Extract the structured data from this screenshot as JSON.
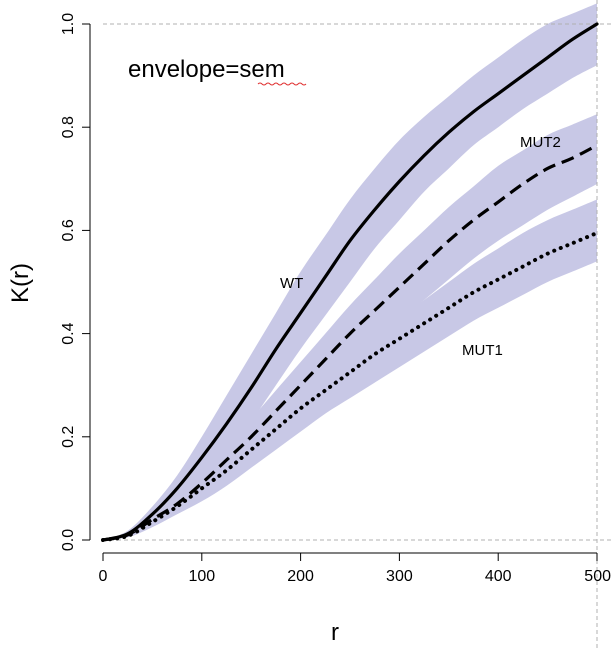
{
  "chart_data": {
    "type": "line",
    "title": "",
    "annotation": "envelope=sem",
    "xlabel": "r",
    "ylabel": "K(r)",
    "xlim": [
      0,
      500
    ],
    "ylim": [
      0,
      1.0
    ],
    "x_ticks": [
      0,
      100,
      200,
      300,
      400,
      500
    ],
    "y_ticks": [
      0.0,
      0.2,
      0.4,
      0.6,
      0.8,
      1.0
    ],
    "x_tick_labels": [
      "0",
      "100",
      "200",
      "300",
      "400",
      "500"
    ],
    "y_tick_labels": [
      "0.0",
      "0.2",
      "0.4",
      "0.6",
      "0.8",
      "1.0"
    ],
    "grid": false,
    "legend": "none",
    "envelope_color": "#c8c8e6",
    "x": [
      0,
      25,
      50,
      75,
      100,
      125,
      150,
      175,
      200,
      225,
      250,
      275,
      300,
      325,
      350,
      375,
      400,
      425,
      450,
      475,
      500
    ],
    "series": [
      {
        "name": "WT",
        "line_style": "solid",
        "values": [
          0.0,
          0.012,
          0.05,
          0.1,
          0.16,
          0.225,
          0.295,
          0.37,
          0.44,
          0.51,
          0.58,
          0.64,
          0.695,
          0.745,
          0.79,
          0.83,
          0.865,
          0.9,
          0.935,
          0.97,
          1.0
        ],
        "band_lower": [
          0.0,
          0.008,
          0.035,
          0.075,
          0.12,
          0.17,
          0.23,
          0.3,
          0.37,
          0.435,
          0.5,
          0.565,
          0.62,
          0.675,
          0.72,
          0.765,
          0.8,
          0.835,
          0.865,
          0.895,
          0.92
        ],
        "band_upper": [
          0.0,
          0.018,
          0.065,
          0.125,
          0.2,
          0.28,
          0.36,
          0.44,
          0.52,
          0.59,
          0.66,
          0.72,
          0.775,
          0.82,
          0.86,
          0.9,
          0.935,
          0.97,
          1.0,
          1.02,
          1.04
        ]
      },
      {
        "name": "MUT2",
        "line_style": "dashed",
        "values": [
          0.0,
          0.01,
          0.04,
          0.07,
          0.11,
          0.155,
          0.2,
          0.25,
          0.3,
          0.35,
          0.4,
          0.445,
          0.49,
          0.535,
          0.58,
          0.62,
          0.655,
          0.69,
          0.72,
          0.74,
          0.765
        ],
        "band_lower": [
          0.0,
          0.007,
          0.028,
          0.055,
          0.085,
          0.12,
          0.16,
          0.205,
          0.255,
          0.305,
          0.345,
          0.385,
          0.425,
          0.465,
          0.505,
          0.545,
          0.58,
          0.61,
          0.64,
          0.665,
          0.69
        ],
        "band_upper": [
          0.0,
          0.014,
          0.055,
          0.09,
          0.135,
          0.185,
          0.235,
          0.29,
          0.345,
          0.4,
          0.455,
          0.505,
          0.555,
          0.6,
          0.645,
          0.685,
          0.725,
          0.755,
          0.785,
          0.805,
          0.825
        ]
      },
      {
        "name": "MUT1",
        "line_style": "dotted",
        "values": [
          0.0,
          0.008,
          0.035,
          0.065,
          0.1,
          0.135,
          0.175,
          0.215,
          0.255,
          0.29,
          0.325,
          0.36,
          0.39,
          0.42,
          0.45,
          0.48,
          0.505,
          0.53,
          0.555,
          0.575,
          0.595
        ],
        "band_lower": [
          0.0,
          0.005,
          0.025,
          0.05,
          0.075,
          0.105,
          0.14,
          0.175,
          0.21,
          0.245,
          0.275,
          0.305,
          0.335,
          0.365,
          0.395,
          0.425,
          0.45,
          0.475,
          0.5,
          0.52,
          0.54
        ],
        "band_upper": [
          0.0,
          0.012,
          0.045,
          0.08,
          0.12,
          0.16,
          0.2,
          0.24,
          0.28,
          0.32,
          0.36,
          0.395,
          0.43,
          0.465,
          0.5,
          0.535,
          0.565,
          0.595,
          0.62,
          0.64,
          0.66
        ]
      }
    ]
  }
}
